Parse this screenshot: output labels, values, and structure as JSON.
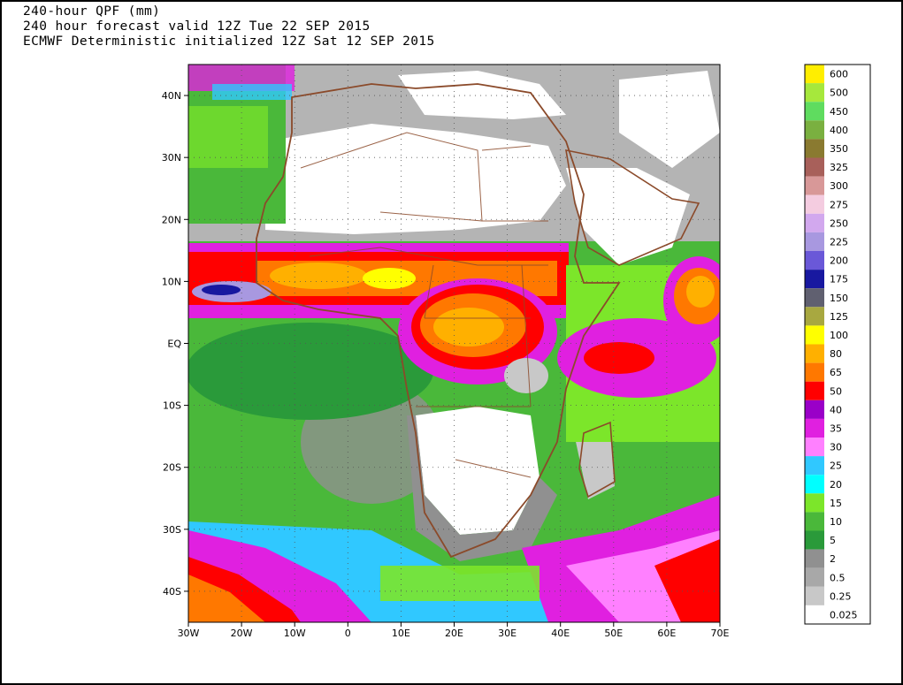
{
  "header": {
    "line1": "240-hour QPF (mm)",
    "line2": "240 hour forecast valid 12Z Tue 22 SEP 2015",
    "line3": "ECMWF Deterministic initialized 12Z Sat 12 SEP 2015"
  },
  "map": {
    "lon_range": [
      -30,
      70
    ],
    "lat_range": [
      -45,
      45
    ],
    "lon_labels": [
      {
        "lon": -30,
        "label": "30W"
      },
      {
        "lon": -20,
        "label": "20W"
      },
      {
        "lon": -10,
        "label": "10W"
      },
      {
        "lon": 0,
        "label": "0"
      },
      {
        "lon": 10,
        "label": "10E"
      },
      {
        "lon": 20,
        "label": "20E"
      },
      {
        "lon": 30,
        "label": "30E"
      },
      {
        "lon": 40,
        "label": "40E"
      },
      {
        "lon": 50,
        "label": "50E"
      },
      {
        "lon": 60,
        "label": "60E"
      },
      {
        "lon": 70,
        "label": "70E"
      }
    ],
    "lat_labels": [
      {
        "lat": 40,
        "label": "40N"
      },
      {
        "lat": 30,
        "label": "30N"
      },
      {
        "lat": 20,
        "label": "20N"
      },
      {
        "lat": 10,
        "label": "10N"
      },
      {
        "lat": 0,
        "label": "EQ"
      },
      {
        "lat": -10,
        "label": "10S"
      },
      {
        "lat": -20,
        "label": "20S"
      },
      {
        "lat": -30,
        "label": "30S"
      },
      {
        "lat": -40,
        "label": "40S"
      }
    ]
  },
  "legend": {
    "bins": [
      {
        "label": "600",
        "color": "#ffee00"
      },
      {
        "label": "500",
        "color": "#a6e83c"
      },
      {
        "label": "450",
        "color": "#5fdc5f"
      },
      {
        "label": "400",
        "color": "#7ab040"
      },
      {
        "label": "350",
        "color": "#8a7a30"
      },
      {
        "label": "325",
        "color": "#a8605a"
      },
      {
        "label": "300",
        "color": "#d89898"
      },
      {
        "label": "275",
        "color": "#f4cce0"
      },
      {
        "label": "250",
        "color": "#d2a8ee"
      },
      {
        "label": "225",
        "color": "#a898e0"
      },
      {
        "label": "200",
        "color": "#6a58d8"
      },
      {
        "label": "175",
        "color": "#1818a0"
      },
      {
        "label": "150",
        "color": "#606070"
      },
      {
        "label": "125",
        "color": "#a8a840"
      },
      {
        "label": "100",
        "color": "#ffff00"
      },
      {
        "label": "80",
        "color": "#ffb000"
      },
      {
        "label": "65",
        "color": "#ff7800"
      },
      {
        "label": "50",
        "color": "#ff0000"
      },
      {
        "label": "40",
        "color": "#9a00c8"
      },
      {
        "label": "35",
        "color": "#e020e0"
      },
      {
        "label": "30",
        "color": "#ff80ff"
      },
      {
        "label": "25",
        "color": "#30c8ff"
      },
      {
        "label": "20",
        "color": "#00ffff"
      },
      {
        "label": "15",
        "color": "#7ce62a"
      },
      {
        "label": "10",
        "color": "#4ab83a"
      },
      {
        "label": "5",
        "color": "#2a9a3a"
      },
      {
        "label": "2",
        "color": "#909090"
      },
      {
        "label": "0.5",
        "color": "#a8a8a8"
      },
      {
        "label": "0.25",
        "color": "#c8c8c8"
      },
      {
        "label": "0.025",
        "color": "#ffffff"
      }
    ]
  }
}
